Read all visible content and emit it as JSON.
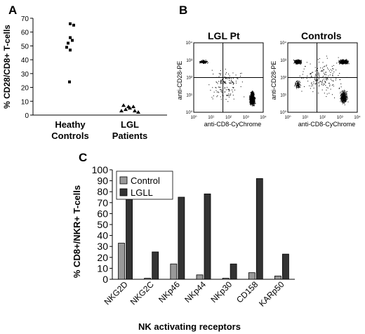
{
  "panels": {
    "a": "A",
    "b": "B",
    "c": "C"
  },
  "chart_data": [
    {
      "type": "scatter",
      "ylabel": "% CD28/CD8+ T-cells",
      "ylim": [
        0,
        70
      ],
      "yticks": [
        "0",
        "10",
        "20",
        "30",
        "40",
        "50",
        "60",
        "70"
      ],
      "xlabels": [
        {
          "line1": "Heathy",
          "line2": "Controls"
        },
        {
          "line1": "LGL",
          "line2": "Patients"
        }
      ],
      "series": [
        {
          "marker": "square",
          "values": [
            66,
            65,
            56,
            54,
            52,
            49,
            47,
            24
          ]
        },
        {
          "marker": "triangle",
          "values": [
            7,
            6,
            6,
            5,
            4,
            3,
            3,
            2
          ]
        }
      ]
    },
    {
      "type": "scatter",
      "title": "LGL Pt",
      "xlabel": "anti-CD8-CyChrome",
      "ylabel": "anti-CD28-PE",
      "axis_ticks": [
        "10⁰",
        "10¹",
        "10²",
        "10³",
        "10⁴"
      ]
    },
    {
      "type": "scatter",
      "title": "Controls",
      "xlabel": "anti-CD8-CyChrome",
      "ylabel": "anti-CD28-PE",
      "axis_ticks": [
        "10⁰",
        "10¹",
        "10²",
        "10³",
        "10⁴"
      ]
    },
    {
      "type": "bar",
      "categories": [
        "NKG2D",
        "NKG2C",
        "NKp46",
        "NKp44",
        "NKp30",
        "CD158",
        "KARp50"
      ],
      "series": [
        {
          "name": "Control",
          "color": "#999999",
          "values": [
            33,
            1,
            14,
            4,
            1,
            6,
            3
          ]
        },
        {
          "name": "LGLL",
          "color": "#333333",
          "values": [
            75,
            25,
            75,
            78,
            14,
            92,
            23
          ]
        }
      ],
      "xlabel": "NK activating receptors",
      "ylabel": "% CD8+/NKR+ T-cells",
      "ylim": [
        0,
        100
      ],
      "yticks": [
        "0",
        "10",
        "20",
        "30",
        "40",
        "50",
        "60",
        "70",
        "80",
        "90",
        "100"
      ],
      "legend_position": "top-left"
    }
  ]
}
